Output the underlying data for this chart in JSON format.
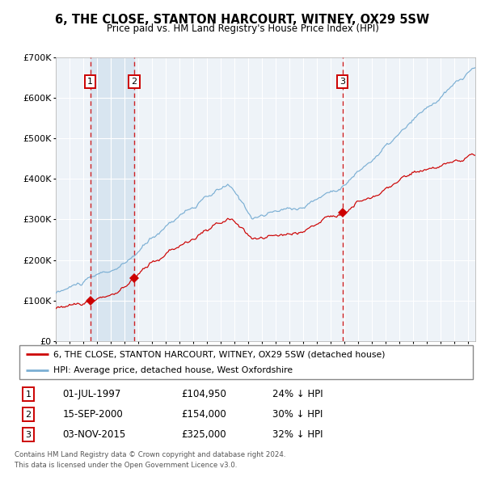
{
  "title": "6, THE CLOSE, STANTON HARCOURT, WITNEY, OX29 5SW",
  "subtitle": "Price paid vs. HM Land Registry's House Price Index (HPI)",
  "footer_line1": "Contains HM Land Registry data © Crown copyright and database right 2024.",
  "footer_line2": "This data is licensed under the Open Government Licence v3.0.",
  "legend_label_red": "6, THE CLOSE, STANTON HARCOURT, WITNEY, OX29 5SW (detached house)",
  "legend_label_blue": "HPI: Average price, detached house, West Oxfordshire",
  "transactions": [
    {
      "num": 1,
      "date_label": "01-JUL-1997",
      "price_label": "£104,950",
      "hpi_label": "24% ↓ HPI",
      "date_x": 1997.5,
      "price": 104950
    },
    {
      "num": 2,
      "date_label": "15-SEP-2000",
      "price_label": "£154,000",
      "hpi_label": "30% ↓ HPI",
      "date_x": 2000.71,
      "price": 154000
    },
    {
      "num": 3,
      "date_label": "03-NOV-2015",
      "price_label": "£325,000",
      "hpi_label": "32% ↓ HPI",
      "date_x": 2015.84,
      "price": 325000
    }
  ],
  "ylim": [
    0,
    700000
  ],
  "xlim_start": 1995.0,
  "xlim_end": 2025.5,
  "bg_color": "#ffffff",
  "plot_bg_color": "#eef3f8",
  "grid_color": "#ffffff",
  "red_color": "#cc0000",
  "blue_color": "#7bafd4",
  "highlight_bg": "#d6e4f0"
}
